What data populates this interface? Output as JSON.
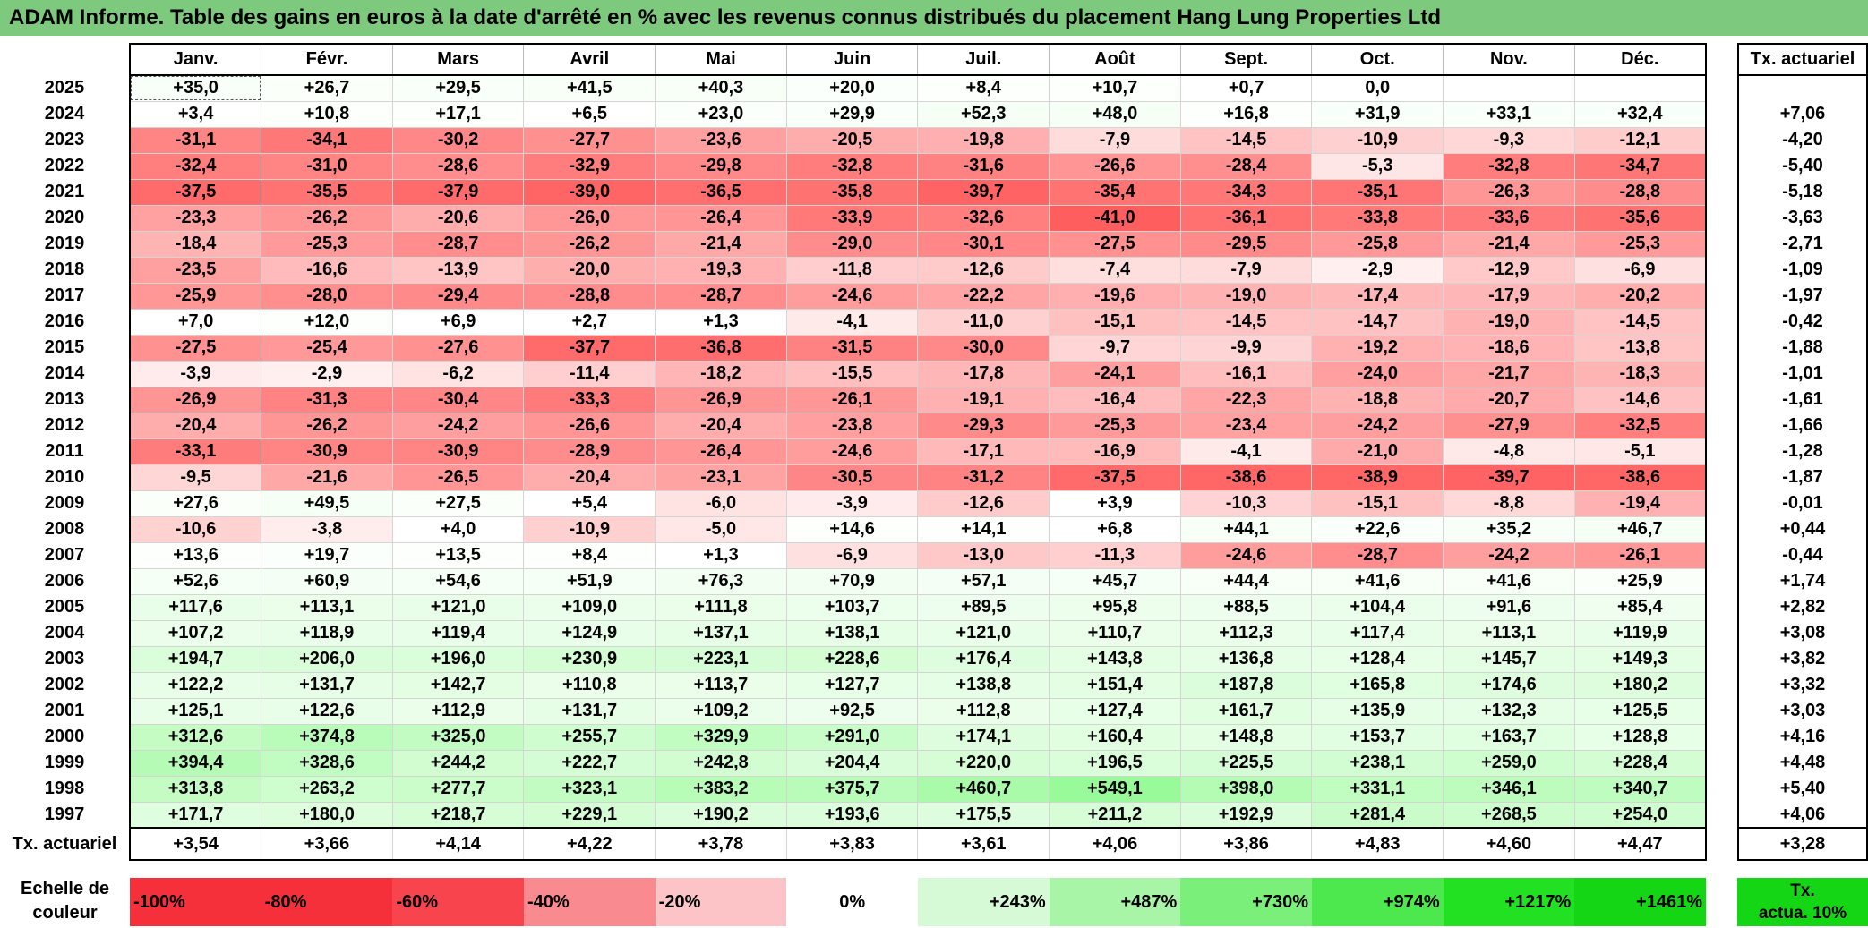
{
  "title": "ADAM Informe. Table des gains en euros à la date d'arrêté en % avec les revenus connus distribués du placement Hang Lung Properties Ltd",
  "months": [
    "Janv.",
    "Févr.",
    "Mars",
    "Avril",
    "Mai",
    "Juin",
    "Juil.",
    "Août",
    "Sept.",
    "Oct.",
    "Nov.",
    "Déc."
  ],
  "actu_header": "Tx. actuariel",
  "rows": [
    {
      "year": "2025",
      "values": [
        "+35,0",
        "+26,7",
        "+29,5",
        "+41,5",
        "+40,3",
        "+20,0",
        "+8,4",
        "+10,7",
        "+0,7",
        "0,0",
        "",
        ""
      ],
      "actu": ""
    },
    {
      "year": "2024",
      "values": [
        "+3,4",
        "+10,8",
        "+17,1",
        "+6,5",
        "+23,0",
        "+29,9",
        "+52,3",
        "+48,0",
        "+16,8",
        "+31,9",
        "+33,1",
        "+32,4"
      ],
      "actu": "+7,06"
    },
    {
      "year": "2023",
      "values": [
        "-31,1",
        "-34,1",
        "-30,2",
        "-27,7",
        "-23,6",
        "-20,5",
        "-19,8",
        "-7,9",
        "-14,5",
        "-10,9",
        "-9,3",
        "-12,1"
      ],
      "actu": "-4,20"
    },
    {
      "year": "2022",
      "values": [
        "-32,4",
        "-31,0",
        "-28,6",
        "-32,9",
        "-29,8",
        "-32,8",
        "-31,6",
        "-26,6",
        "-28,4",
        "-5,3",
        "-32,8",
        "-34,7"
      ],
      "actu": "-5,40"
    },
    {
      "year": "2021",
      "values": [
        "-37,5",
        "-35,5",
        "-37,9",
        "-39,0",
        "-36,5",
        "-35,8",
        "-39,7",
        "-35,4",
        "-34,3",
        "-35,1",
        "-26,3",
        "-28,8"
      ],
      "actu": "-5,18"
    },
    {
      "year": "2020",
      "values": [
        "-23,3",
        "-26,2",
        "-20,6",
        "-26,0",
        "-26,4",
        "-33,9",
        "-32,6",
        "-41,0",
        "-36,1",
        "-33,8",
        "-33,6",
        "-35,6"
      ],
      "actu": "-3,63"
    },
    {
      "year": "2019",
      "values": [
        "-18,4",
        "-25,3",
        "-28,7",
        "-26,2",
        "-21,4",
        "-29,0",
        "-30,1",
        "-27,5",
        "-29,5",
        "-25,8",
        "-21,4",
        "-25,3"
      ],
      "actu": "-2,71"
    },
    {
      "year": "2018",
      "values": [
        "-23,5",
        "-16,6",
        "-13,9",
        "-20,0",
        "-19,3",
        "-11,8",
        "-12,6",
        "-7,4",
        "-7,9",
        "-2,9",
        "-12,9",
        "-6,9"
      ],
      "actu": "-1,09"
    },
    {
      "year": "2017",
      "values": [
        "-25,9",
        "-28,0",
        "-29,4",
        "-28,8",
        "-28,7",
        "-24,6",
        "-22,2",
        "-19,6",
        "-19,0",
        "-17,4",
        "-17,9",
        "-20,2"
      ],
      "actu": "-1,97"
    },
    {
      "year": "2016",
      "values": [
        "+7,0",
        "+12,0",
        "+6,9",
        "+2,7",
        "+1,3",
        "-4,1",
        "-11,0",
        "-15,1",
        "-14,5",
        "-14,7",
        "-19,0",
        "-14,5"
      ],
      "actu": "-0,42"
    },
    {
      "year": "2015",
      "values": [
        "-27,5",
        "-25,4",
        "-27,6",
        "-37,7",
        "-36,8",
        "-31,5",
        "-30,0",
        "-9,7",
        "-9,9",
        "-19,2",
        "-18,6",
        "-13,8"
      ],
      "actu": "-1,88"
    },
    {
      "year": "2014",
      "values": [
        "-3,9",
        "-2,9",
        "-6,2",
        "-11,4",
        "-18,2",
        "-15,5",
        "-17,8",
        "-24,1",
        "-16,1",
        "-24,0",
        "-21,7",
        "-18,3"
      ],
      "actu": "-1,01"
    },
    {
      "year": "2013",
      "values": [
        "-26,9",
        "-31,3",
        "-30,4",
        "-33,3",
        "-26,9",
        "-26,1",
        "-19,1",
        "-16,4",
        "-22,3",
        "-18,8",
        "-20,7",
        "-14,6"
      ],
      "actu": "-1,61"
    },
    {
      "year": "2012",
      "values": [
        "-20,4",
        "-26,2",
        "-24,2",
        "-26,6",
        "-20,4",
        "-23,8",
        "-29,3",
        "-25,3",
        "-23,4",
        "-24,2",
        "-27,9",
        "-32,5"
      ],
      "actu": "-1,66"
    },
    {
      "year": "2011",
      "values": [
        "-33,1",
        "-30,9",
        "-30,9",
        "-28,9",
        "-26,4",
        "-24,6",
        "-17,1",
        "-16,9",
        "-4,1",
        "-21,0",
        "-4,8",
        "-5,1"
      ],
      "actu": "-1,28"
    },
    {
      "year": "2010",
      "values": [
        "-9,5",
        "-21,6",
        "-26,5",
        "-20,4",
        "-23,1",
        "-30,5",
        "-31,2",
        "-37,5",
        "-38,6",
        "-38,9",
        "-39,7",
        "-38,6"
      ],
      "actu": "-1,87"
    },
    {
      "year": "2009",
      "values": [
        "+27,6",
        "+49,5",
        "+27,5",
        "+5,4",
        "-6,0",
        "-3,9",
        "-12,6",
        "+3,9",
        "-10,3",
        "-15,1",
        "-8,8",
        "-19,4"
      ],
      "actu": "-0,01"
    },
    {
      "year": "2008",
      "values": [
        "-10,6",
        "-3,8",
        "+4,0",
        "-10,9",
        "-5,0",
        "+14,6",
        "+14,1",
        "+6,8",
        "+44,1",
        "+22,6",
        "+35,2",
        "+46,7"
      ],
      "actu": "+0,44"
    },
    {
      "year": "2007",
      "values": [
        "+13,6",
        "+19,7",
        "+13,5",
        "+8,4",
        "+1,3",
        "-6,9",
        "-13,0",
        "-11,3",
        "-24,6",
        "-28,7",
        "-24,2",
        "-26,1"
      ],
      "actu": "-0,44"
    },
    {
      "year": "2006",
      "values": [
        "+52,6",
        "+60,9",
        "+54,6",
        "+51,9",
        "+76,3",
        "+70,9",
        "+57,1",
        "+45,7",
        "+44,4",
        "+41,6",
        "+41,6",
        "+25,9"
      ],
      "actu": "+1,74"
    },
    {
      "year": "2005",
      "values": [
        "+117,6",
        "+113,1",
        "+121,0",
        "+109,0",
        "+111,8",
        "+103,7",
        "+89,5",
        "+95,8",
        "+88,5",
        "+104,4",
        "+91,6",
        "+85,4"
      ],
      "actu": "+2,82"
    },
    {
      "year": "2004",
      "values": [
        "+107,2",
        "+118,9",
        "+119,4",
        "+124,9",
        "+137,1",
        "+138,1",
        "+121,0",
        "+110,7",
        "+112,3",
        "+117,4",
        "+113,1",
        "+119,9"
      ],
      "actu": "+3,08"
    },
    {
      "year": "2003",
      "values": [
        "+194,7",
        "+206,0",
        "+196,0",
        "+230,9",
        "+223,1",
        "+228,6",
        "+176,4",
        "+143,8",
        "+136,8",
        "+128,4",
        "+145,7",
        "+149,3"
      ],
      "actu": "+3,82"
    },
    {
      "year": "2002",
      "values": [
        "+122,2",
        "+131,7",
        "+142,7",
        "+110,8",
        "+113,7",
        "+127,7",
        "+138,8",
        "+151,4",
        "+187,8",
        "+165,8",
        "+174,6",
        "+180,2"
      ],
      "actu": "+3,32"
    },
    {
      "year": "2001",
      "values": [
        "+125,1",
        "+122,6",
        "+112,9",
        "+131,7",
        "+109,2",
        "+92,5",
        "+112,8",
        "+127,4",
        "+161,7",
        "+135,9",
        "+132,3",
        "+125,5"
      ],
      "actu": "+3,03"
    },
    {
      "year": "2000",
      "values": [
        "+312,6",
        "+374,8",
        "+325,0",
        "+255,7",
        "+329,9",
        "+291,0",
        "+174,1",
        "+160,4",
        "+148,8",
        "+153,7",
        "+163,7",
        "+128,8"
      ],
      "actu": "+4,16"
    },
    {
      "year": "1999",
      "values": [
        "+394,4",
        "+328,6",
        "+244,2",
        "+222,7",
        "+242,8",
        "+204,4",
        "+220,0",
        "+196,5",
        "+225,5",
        "+238,1",
        "+259,0",
        "+228,4"
      ],
      "actu": "+4,48"
    },
    {
      "year": "1998",
      "values": [
        "+313,8",
        "+263,2",
        "+277,7",
        "+323,1",
        "+383,2",
        "+375,7",
        "+460,7",
        "+549,1",
        "+398,0",
        "+331,1",
        "+346,1",
        "+340,7"
      ],
      "actu": "+5,40"
    },
    {
      "year": "1997",
      "values": [
        "+171,7",
        "+180,0",
        "+218,7",
        "+229,1",
        "+190,2",
        "+193,6",
        "+175,5",
        "+211,2",
        "+192,9",
        "+281,4",
        "+268,5",
        "+254,0"
      ],
      "actu": "+4,06"
    }
  ],
  "actu_row": {
    "label": "Tx. actuariel",
    "values": [
      "+3,54",
      "+3,66",
      "+4,14",
      "+4,22",
      "+3,78",
      "+3,83",
      "+3,61",
      "+4,06",
      "+3,86",
      "+4,83",
      "+4,60",
      "+4,47"
    ],
    "total": "+3,28"
  },
  "scale": {
    "label_line1": "Echelle de",
    "label_line2": "couleur",
    "swatches": [
      {
        "text": "-100%",
        "color": "#f5303b",
        "kind": "neg"
      },
      {
        "text": "-80%",
        "color": "#f5303b",
        "kind": "neg"
      },
      {
        "text": "-60%",
        "color": "#f7444d",
        "kind": "neg"
      },
      {
        "text": "-40%",
        "color": "#f98a8f",
        "kind": "neg"
      },
      {
        "text": "-20%",
        "color": "#fcc4c6",
        "kind": "neg"
      },
      {
        "text": "0%",
        "color": "#ffffff",
        "kind": "zero"
      },
      {
        "text": "+243%",
        "color": "#d5fad5",
        "kind": "pos"
      },
      {
        "text": "+487%",
        "color": "#a8f5a8",
        "kind": "pos"
      },
      {
        "text": "+730%",
        "color": "#7aef7a",
        "kind": "pos"
      },
      {
        "text": "+974%",
        "color": "#4de84d",
        "kind": "pos"
      },
      {
        "text": "+1217%",
        "color": "#22e022",
        "kind": "pos"
      },
      {
        "text": "+1461%",
        "color": "#15d615",
        "kind": "pos"
      }
    ],
    "actu_line1": "Tx.",
    "actu_line2": "actua. 10%",
    "actu_color": "#15d615"
  },
  "colors": {
    "title_bg": "#7dc97d",
    "neg_max": "#ff5a5a",
    "pos_max": "#12d812"
  }
}
